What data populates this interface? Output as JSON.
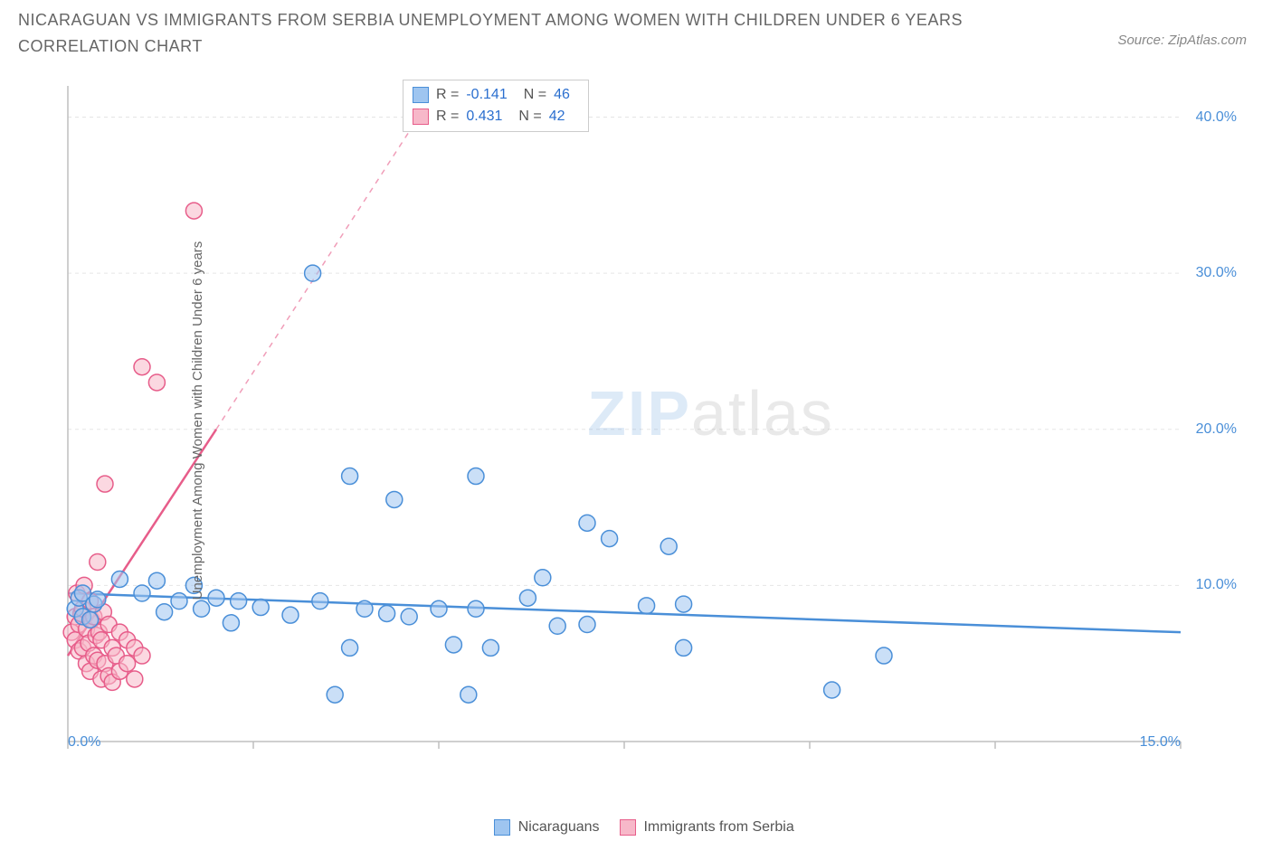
{
  "title": "NICARAGUAN VS IMMIGRANTS FROM SERBIA UNEMPLOYMENT AMONG WOMEN WITH CHILDREN UNDER 6 YEARS CORRELATION CHART",
  "source": "Source: ZipAtlas.com",
  "y_axis_label": "Unemployment Among Women with Children Under 6 years",
  "watermark_bold": "ZIP",
  "watermark_light": "atlas",
  "chart": {
    "type": "scatter",
    "xlim": [
      0,
      15
    ],
    "ylim": [
      0,
      42
    ],
    "x_ticks": [
      0,
      2.5,
      5,
      7.5,
      10,
      12.5,
      15
    ],
    "x_tick_labels": [
      "0.0%",
      "",
      "",
      "",
      "",
      "",
      "15.0%"
    ],
    "y_ticks": [
      10,
      20,
      30,
      40
    ],
    "y_tick_labels": [
      "10.0%",
      "20.0%",
      "30.0%",
      "40.0%"
    ],
    "grid_color": "#e5e5e5",
    "axis_color": "#bfbfbf",
    "background_color": "#ffffff",
    "marker_radius": 9,
    "marker_stroke_width": 1.5,
    "trend_line_width": 2.5,
    "series": [
      {
        "name": "Nicaraguans",
        "fill_color": "#9ec5f0",
        "stroke_color": "#4a8fd8",
        "fill_opacity": 0.55,
        "R": "-0.141",
        "N": "46",
        "trend": {
          "x1": 0,
          "y1": 9.5,
          "x2": 15,
          "y2": 7.0,
          "dashed_beyond": false
        },
        "points": [
          [
            0.1,
            8.5
          ],
          [
            0.15,
            9.2
          ],
          [
            0.2,
            8.0
          ],
          [
            0.2,
            9.5
          ],
          [
            0.3,
            7.8
          ],
          [
            0.35,
            8.8
          ],
          [
            0.4,
            9.1
          ],
          [
            0.7,
            10.4
          ],
          [
            1.0,
            9.5
          ],
          [
            1.2,
            10.3
          ],
          [
            1.3,
            8.3
          ],
          [
            1.5,
            9.0
          ],
          [
            1.7,
            10.0
          ],
          [
            1.8,
            8.5
          ],
          [
            2.0,
            9.2
          ],
          [
            2.2,
            7.6
          ],
          [
            2.3,
            9.0
          ],
          [
            2.6,
            8.6
          ],
          [
            3.0,
            8.1
          ],
          [
            3.4,
            9.0
          ],
          [
            3.3,
            30.0
          ],
          [
            3.6,
            3.0
          ],
          [
            3.8,
            6.0
          ],
          [
            3.8,
            17.0
          ],
          [
            4.0,
            8.5
          ],
          [
            4.3,
            8.2
          ],
          [
            4.4,
            15.5
          ],
          [
            4.6,
            8.0
          ],
          [
            5.0,
            8.5
          ],
          [
            5.2,
            6.2
          ],
          [
            5.4,
            3.0
          ],
          [
            5.5,
            8.5
          ],
          [
            5.5,
            17.0
          ],
          [
            5.7,
            6.0
          ],
          [
            6.2,
            9.2
          ],
          [
            6.4,
            10.5
          ],
          [
            6.6,
            7.4
          ],
          [
            7.0,
            7.5
          ],
          [
            7.0,
            14.0
          ],
          [
            7.3,
            13.0
          ],
          [
            7.8,
            8.7
          ],
          [
            8.1,
            12.5
          ],
          [
            8.3,
            8.8
          ],
          [
            8.3,
            6.0
          ],
          [
            10.3,
            3.3
          ],
          [
            11.0,
            5.5
          ]
        ]
      },
      {
        "name": "Immigrants from Serbia",
        "fill_color": "#f7b8c9",
        "stroke_color": "#e75d8a",
        "fill_opacity": 0.55,
        "R": "0.431",
        "N": "42",
        "trend": {
          "x1": 0,
          "y1": 5.5,
          "x2": 2.0,
          "y2": 20.0,
          "dashed_to_x": 5.0,
          "dashed_to_y": 42.0
        },
        "points": [
          [
            0.05,
            7.0
          ],
          [
            0.1,
            6.5
          ],
          [
            0.1,
            8.0
          ],
          [
            0.12,
            9.5
          ],
          [
            0.15,
            5.8
          ],
          [
            0.15,
            7.5
          ],
          [
            0.18,
            8.2
          ],
          [
            0.2,
            6.0
          ],
          [
            0.2,
            8.5
          ],
          [
            0.22,
            10.0
          ],
          [
            0.25,
            5.0
          ],
          [
            0.25,
            7.2
          ],
          [
            0.28,
            6.3
          ],
          [
            0.3,
            9.0
          ],
          [
            0.3,
            4.5
          ],
          [
            0.32,
            7.8
          ],
          [
            0.35,
            5.5
          ],
          [
            0.35,
            8.0
          ],
          [
            0.38,
            6.8
          ],
          [
            0.4,
            11.5
          ],
          [
            0.4,
            5.2
          ],
          [
            0.42,
            7.0
          ],
          [
            0.45,
            4.0
          ],
          [
            0.45,
            6.5
          ],
          [
            0.48,
            8.3
          ],
          [
            0.5,
            5.0
          ],
          [
            0.5,
            16.5
          ],
          [
            0.55,
            4.2
          ],
          [
            0.55,
            7.5
          ],
          [
            0.6,
            6.0
          ],
          [
            0.6,
            3.8
          ],
          [
            0.65,
            5.5
          ],
          [
            0.7,
            4.5
          ],
          [
            0.7,
            7.0
          ],
          [
            0.8,
            5.0
          ],
          [
            0.8,
            6.5
          ],
          [
            0.9,
            4.0
          ],
          [
            0.9,
            6.0
          ],
          [
            1.0,
            5.5
          ],
          [
            1.0,
            24.0
          ],
          [
            1.2,
            23.0
          ],
          [
            1.7,
            34.0
          ]
        ]
      }
    ],
    "bottom_legend": [
      {
        "label": "Nicaraguans",
        "fill": "#9ec5f0",
        "stroke": "#4a8fd8"
      },
      {
        "label": "Immigrants from Serbia",
        "fill": "#f7b8c9",
        "stroke": "#e75d8a"
      }
    ]
  }
}
